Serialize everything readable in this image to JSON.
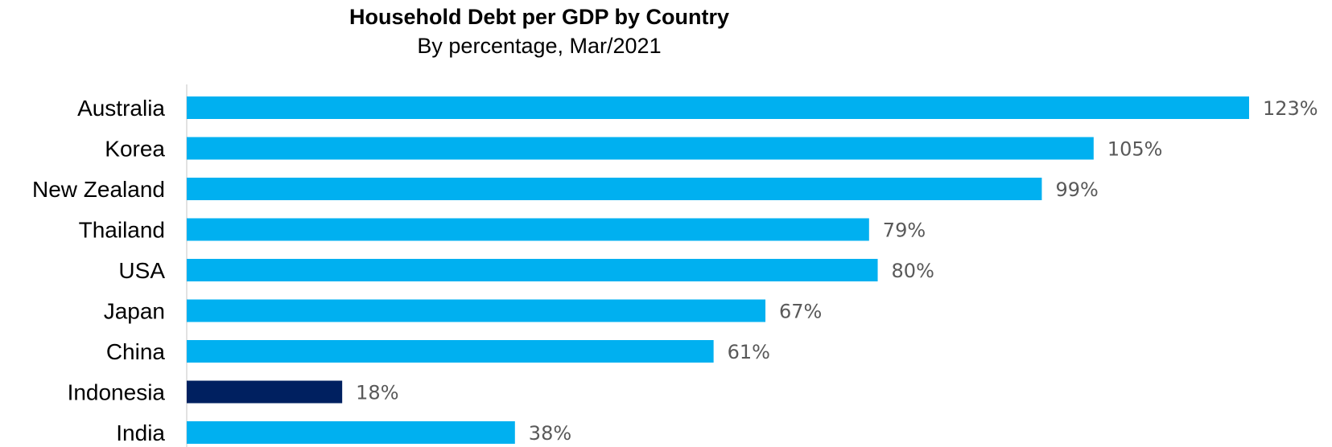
{
  "colors": {
    "default_bar": "#00B0F0",
    "highlight_bar": "#002060",
    "axis": "#d9d9d9"
  },
  "chart_data": {
    "type": "bar",
    "orientation": "horizontal",
    "title": "Household Debt per GDP by Country",
    "subtitle": "By percentage, Mar/2021",
    "categories": [
      "Australia",
      "Korea",
      "New Zealand",
      "Thailand",
      "USA",
      "Japan",
      "China",
      "Indonesia",
      "India"
    ],
    "values": [
      123,
      105,
      99,
      79,
      80,
      67,
      61,
      18,
      38
    ],
    "value_labels": [
      "123%",
      "105%",
      "99%",
      "79%",
      "80%",
      "67%",
      "61%",
      "18%",
      "38%"
    ],
    "highlight": "Indonesia",
    "xlim": [
      0,
      123
    ],
    "grid": false,
    "legend": "none"
  }
}
